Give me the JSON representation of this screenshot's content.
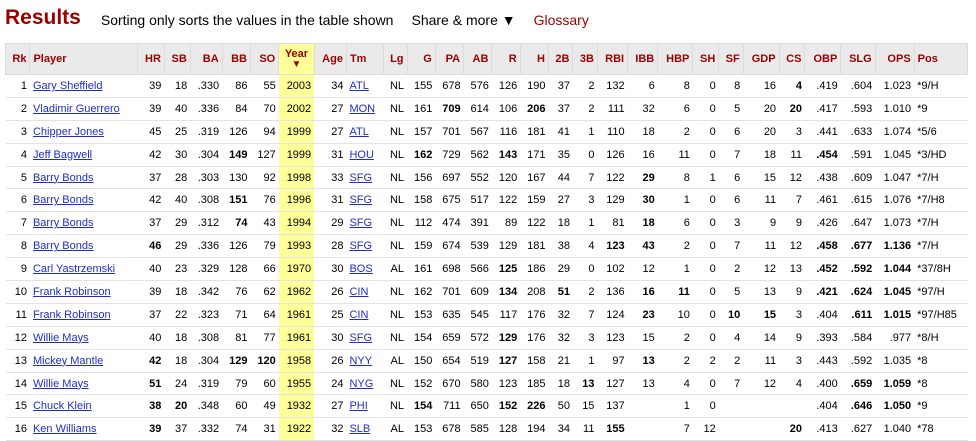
{
  "header": {
    "title": "Results",
    "sort_note": "Sorting only sorts the values in the table shown",
    "share_label": "Share & more ▼",
    "glossary_label": "Glossary"
  },
  "sort_arrow": "▼",
  "columns": [
    "Rk",
    "Player",
    "HR",
    "SB",
    "BA",
    "BB",
    "SO",
    "Year",
    "Age",
    "Tm",
    "Lg",
    "G",
    "PA",
    "AB",
    "R",
    "H",
    "2B",
    "3B",
    "RBI",
    "IBB",
    "HBP",
    "SH",
    "SF",
    "GDP",
    "CS",
    "OBP",
    "SLG",
    "OPS",
    "Pos"
  ],
  "rows": [
    [
      "1",
      "Gary Sheffield",
      "39",
      "18",
      ".330",
      "86",
      "55",
      "2003",
      "34",
      "ATL",
      "NL",
      "155",
      "678",
      "576",
      "126",
      "190",
      "37",
      "2",
      "132",
      "6",
      "8",
      "0",
      "8",
      "16",
      "4",
      ".419",
      ".604",
      "1.023",
      "*9/H"
    ],
    [
      "2",
      "Vladimir Guerrero",
      "39",
      "40",
      ".336",
      "84",
      "70",
      "2002",
      "27",
      "MON",
      "NL",
      "161",
      "709",
      "614",
      "106",
      "206",
      "37",
      "2",
      "111",
      "32",
      "6",
      "0",
      "5",
      "20",
      "20",
      ".417",
      ".593",
      "1.010",
      "*9"
    ],
    [
      "3",
      "Chipper Jones",
      "45",
      "25",
      ".319",
      "126",
      "94",
      "1999",
      "27",
      "ATL",
      "NL",
      "157",
      "701",
      "567",
      "116",
      "181",
      "41",
      "1",
      "110",
      "18",
      "2",
      "0",
      "6",
      "20",
      "3",
      ".441",
      ".633",
      "1.074",
      "*5/6"
    ],
    [
      "4",
      "Jeff Bagwell",
      "42",
      "30",
      ".304",
      "149",
      "127",
      "1999",
      "31",
      "HOU",
      "NL",
      "162",
      "729",
      "562",
      "143",
      "171",
      "35",
      "0",
      "126",
      "16",
      "11",
      "0",
      "7",
      "18",
      "11",
      ".454",
      ".591",
      "1.045",
      "*3/HD"
    ],
    [
      "5",
      "Barry Bonds",
      "37",
      "28",
      ".303",
      "130",
      "92",
      "1998",
      "33",
      "SFG",
      "NL",
      "156",
      "697",
      "552",
      "120",
      "167",
      "44",
      "7",
      "122",
      "29",
      "8",
      "1",
      "6",
      "15",
      "12",
      ".438",
      ".609",
      "1.047",
      "*7/H"
    ],
    [
      "6",
      "Barry Bonds",
      "42",
      "40",
      ".308",
      "151",
      "76",
      "1996",
      "31",
      "SFG",
      "NL",
      "158",
      "675",
      "517",
      "122",
      "159",
      "27",
      "3",
      "129",
      "30",
      "1",
      "0",
      "6",
      "11",
      "7",
      ".461",
      ".615",
      "1.076",
      "*7/H8"
    ],
    [
      "7",
      "Barry Bonds",
      "37",
      "29",
      ".312",
      "74",
      "43",
      "1994",
      "29",
      "SFG",
      "NL",
      "112",
      "474",
      "391",
      "89",
      "122",
      "18",
      "1",
      "81",
      "18",
      "6",
      "0",
      "3",
      "9",
      "9",
      ".426",
      ".647",
      "1.073",
      "*7/H"
    ],
    [
      "8",
      "Barry Bonds",
      "46",
      "29",
      ".336",
      "126",
      "79",
      "1993",
      "28",
      "SFG",
      "NL",
      "159",
      "674",
      "539",
      "129",
      "181",
      "38",
      "4",
      "123",
      "43",
      "2",
      "0",
      "7",
      "11",
      "12",
      ".458",
      ".677",
      "1.136",
      "*7/H"
    ],
    [
      "9",
      "Carl Yastrzemski",
      "40",
      "23",
      ".329",
      "128",
      "66",
      "1970",
      "30",
      "BOS",
      "AL",
      "161",
      "698",
      "566",
      "125",
      "186",
      "29",
      "0",
      "102",
      "12",
      "1",
      "0",
      "2",
      "12",
      "13",
      ".452",
      ".592",
      "1.044",
      "*37/8H"
    ],
    [
      "10",
      "Frank Robinson",
      "39",
      "18",
      ".342",
      "76",
      "62",
      "1962",
      "26",
      "CIN",
      "NL",
      "162",
      "701",
      "609",
      "134",
      "208",
      "51",
      "2",
      "136",
      "16",
      "11",
      "0",
      "5",
      "13",
      "9",
      ".421",
      ".624",
      "1.045",
      "*97/H"
    ],
    [
      "11",
      "Frank Robinson",
      "37",
      "22",
      ".323",
      "71",
      "64",
      "1961",
      "25",
      "CIN",
      "NL",
      "153",
      "635",
      "545",
      "117",
      "176",
      "32",
      "7",
      "124",
      "23",
      "10",
      "0",
      "10",
      "15",
      "3",
      ".404",
      ".611",
      "1.015",
      "*97/H85"
    ],
    [
      "12",
      "Willie Mays",
      "40",
      "18",
      ".308",
      "81",
      "77",
      "1961",
      "30",
      "SFG",
      "NL",
      "154",
      "659",
      "572",
      "129",
      "176",
      "32",
      "3",
      "123",
      "15",
      "2",
      "0",
      "4",
      "14",
      "9",
      ".393",
      ".584",
      ".977",
      "*8/H"
    ],
    [
      "13",
      "Mickey Mantle",
      "42",
      "18",
      ".304",
      "129",
      "120",
      "1958",
      "26",
      "NYY",
      "AL",
      "150",
      "654",
      "519",
      "127",
      "158",
      "21",
      "1",
      "97",
      "13",
      "2",
      "2",
      "2",
      "11",
      "3",
      ".443",
      ".592",
      "1.035",
      "*8"
    ],
    [
      "14",
      "Willie Mays",
      "51",
      "24",
      ".319",
      "79",
      "60",
      "1955",
      "24",
      "NYG",
      "NL",
      "152",
      "670",
      "580",
      "123",
      "185",
      "18",
      "13",
      "127",
      "13",
      "4",
      "0",
      "7",
      "12",
      "4",
      ".400",
      ".659",
      "1.059",
      "*8"
    ],
    [
      "15",
      "Chuck Klein",
      "38",
      "20",
      ".348",
      "60",
      "49",
      "1932",
      "27",
      "PHI",
      "NL",
      "154",
      "711",
      "650",
      "152",
      "226",
      "50",
      "15",
      "137",
      "",
      "1",
      "0",
      "",
      "",
      "",
      ".404",
      ".646",
      "1.050",
      "*9"
    ],
    [
      "16",
      "Ken Williams",
      "39",
      "37",
      ".332",
      "74",
      "31",
      "1922",
      "32",
      "SLB",
      "AL",
      "153",
      "678",
      "585",
      "128",
      "194",
      "34",
      "11",
      "155",
      "",
      "7",
      "12",
      "",
      "",
      "20",
      ".413",
      ".627",
      "1.040",
      "*78"
    ]
  ],
  "bold_cells": [
    [
      1,
      24
    ],
    [
      2,
      12
    ],
    [
      2,
      15
    ],
    [
      2,
      24
    ],
    [
      4,
      5
    ],
    [
      4,
      11
    ],
    [
      4,
      14
    ],
    [
      4,
      25
    ],
    [
      5,
      19
    ],
    [
      6,
      5
    ],
    [
      6,
      19
    ],
    [
      7,
      5
    ],
    [
      7,
      19
    ],
    [
      8,
      2
    ],
    [
      8,
      18
    ],
    [
      8,
      19
    ],
    [
      8,
      25
    ],
    [
      8,
      26
    ],
    [
      8,
      27
    ],
    [
      9,
      14
    ],
    [
      9,
      25
    ],
    [
      9,
      26
    ],
    [
      9,
      27
    ],
    [
      10,
      14
    ],
    [
      10,
      16
    ],
    [
      10,
      19
    ],
    [
      10,
      20
    ],
    [
      10,
      25
    ],
    [
      10,
      26
    ],
    [
      10,
      27
    ],
    [
      11,
      19
    ],
    [
      11,
      22
    ],
    [
      11,
      23
    ],
    [
      11,
      26
    ],
    [
      11,
      27
    ],
    [
      12,
      14
    ],
    [
      13,
      2
    ],
    [
      13,
      5
    ],
    [
      13,
      6
    ],
    [
      13,
      14
    ],
    [
      13,
      19
    ],
    [
      14,
      2
    ],
    [
      14,
      17
    ],
    [
      14,
      26
    ],
    [
      14,
      27
    ],
    [
      15,
      2
    ],
    [
      15,
      3
    ],
    [
      15,
      11
    ],
    [
      15,
      14
    ],
    [
      15,
      15
    ],
    [
      15,
      26
    ],
    [
      15,
      27
    ],
    [
      16,
      2
    ],
    [
      16,
      18
    ],
    [
      16,
      24
    ]
  ]
}
